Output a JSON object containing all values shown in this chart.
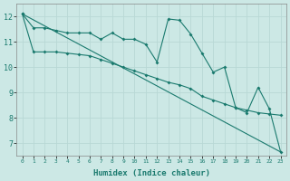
{
  "line1": [
    12.1,
    11.55,
    11.55,
    11.45,
    11.35,
    11.35,
    11.35,
    11.1,
    11.35,
    11.1,
    11.1,
    10.9,
    10.2,
    11.9,
    11.85,
    11.3,
    10.55,
    9.8,
    10.0,
    8.4,
    8.2,
    9.2,
    8.35,
    6.65
  ],
  "line2": [
    12.1,
    10.6,
    10.6,
    10.6,
    10.55,
    10.5,
    10.45,
    10.3,
    10.15,
    10.0,
    9.85,
    9.7,
    9.55,
    9.4,
    9.3,
    9.15,
    8.85,
    8.7,
    8.55,
    8.4,
    8.3,
    8.2,
    8.15,
    8.1
  ],
  "line3_x": [
    0,
    23
  ],
  "line3_y": [
    12.1,
    6.65
  ],
  "x": [
    0,
    1,
    2,
    3,
    4,
    5,
    6,
    7,
    8,
    9,
    10,
    11,
    12,
    13,
    14,
    15,
    16,
    17,
    18,
    19,
    20,
    21,
    22,
    23
  ],
  "color": "#1a7a6e",
  "bg_color": "#cce8e5",
  "grid_color": "#b8d8d5",
  "xlabel": "Humidex (Indice chaleur)",
  "ylim": [
    6.5,
    12.5
  ],
  "xlim": [
    -0.5,
    23.5
  ],
  "yticks": [
    7,
    8,
    9,
    10,
    11,
    12
  ],
  "xticks": [
    0,
    1,
    2,
    3,
    4,
    5,
    6,
    7,
    8,
    9,
    10,
    11,
    12,
    13,
    14,
    15,
    16,
    17,
    18,
    19,
    20,
    21,
    22,
    23
  ],
  "xtick_labels": [
    "0",
    "1",
    "2",
    "3",
    "4",
    "5",
    "6",
    "7",
    "8",
    "9",
    "10",
    "11",
    "12",
    "13",
    "14",
    "15",
    "16",
    "17",
    "18",
    "19",
    "20",
    "21",
    "22",
    "23"
  ]
}
